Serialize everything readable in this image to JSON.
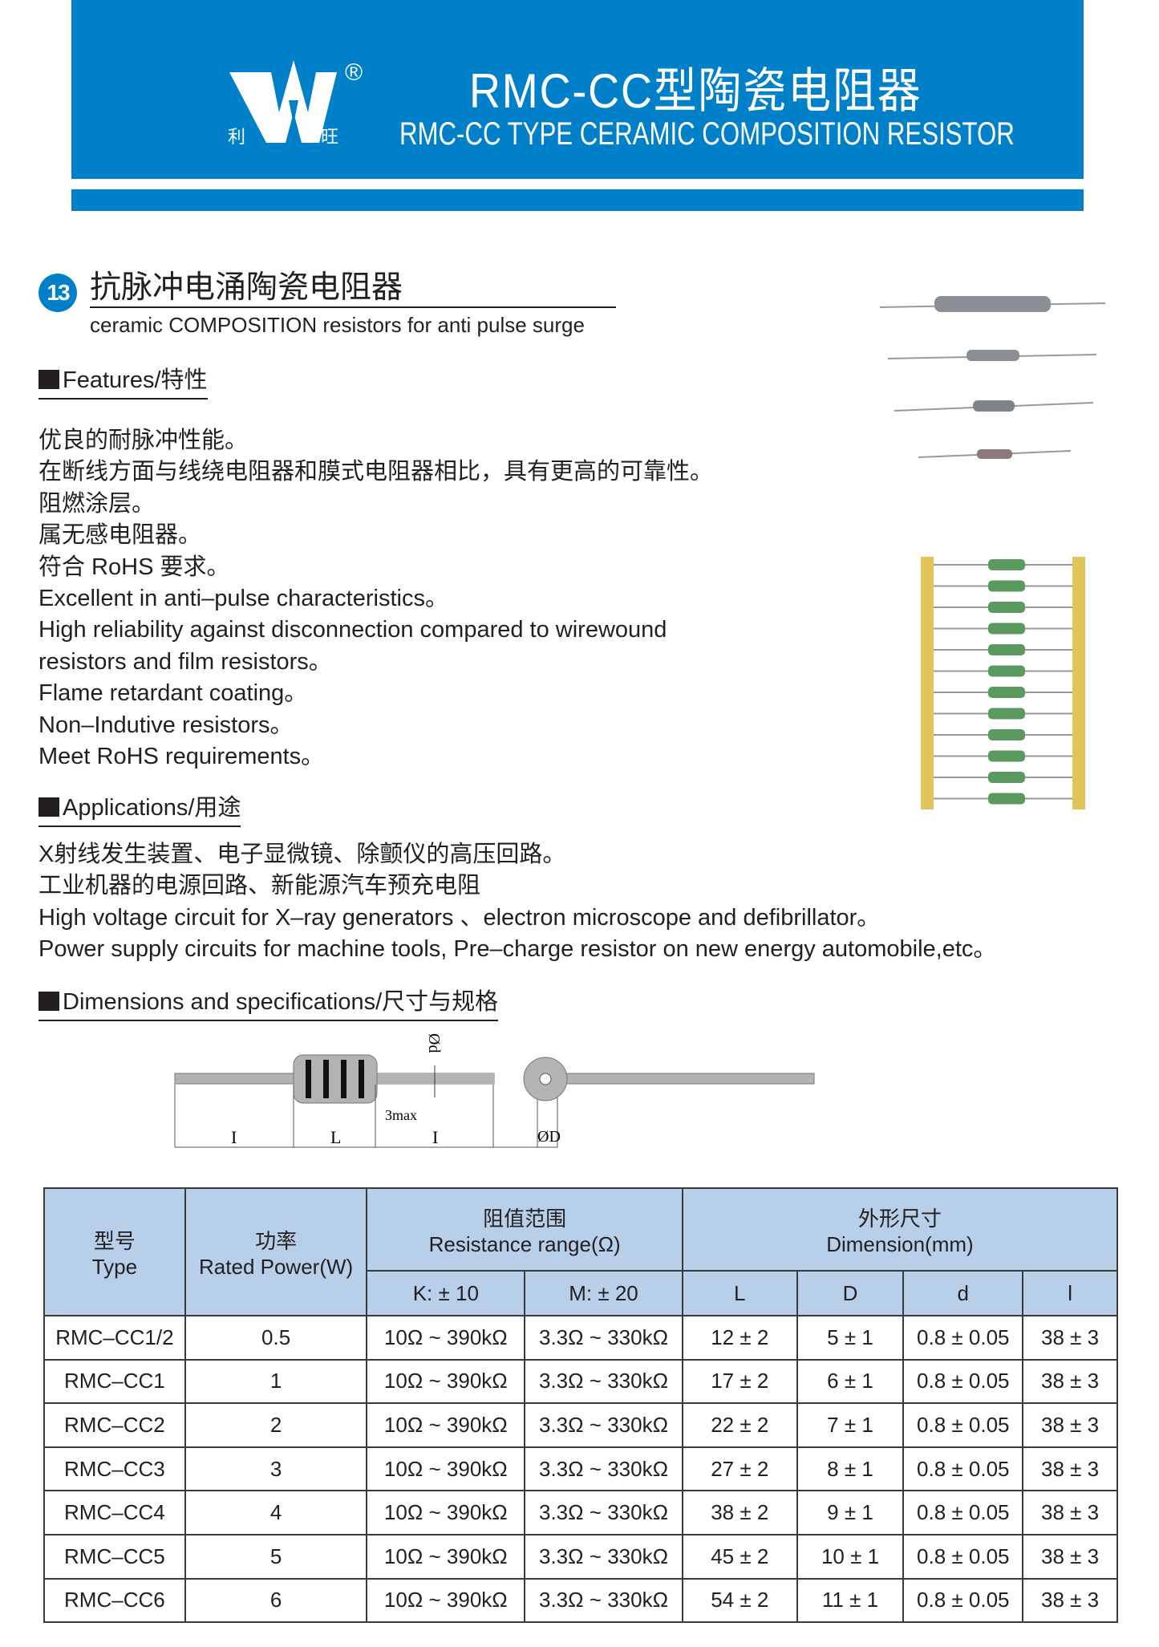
{
  "header": {
    "logo_left_char": "利",
    "logo_right_char": "旺",
    "registered": "®",
    "title_cn": "RMC-CC型陶瓷电阻器",
    "title_en": "RMC-CC TYPE CERAMIC COMPOSITION RESISTOR",
    "color": "#0080c8"
  },
  "section": {
    "number": "13",
    "title_cn": "抗脉冲电涌陶瓷电阻器",
    "title_en": "ceramic COMPOSITION resistors for anti pulse surge"
  },
  "features": {
    "heading": "Features/特性",
    "lines": [
      "优良的耐脉冲性能。",
      "在断线方面与线绕电阻器和膜式电阻器相比，具有更高的可靠性。",
      "阻燃涂层。",
      "属无感电阻器。",
      "符合 RoHS 要求。",
      "Excellent in anti–pulse characteristics。",
      "High reliability against disconnection compared to wirewound",
      "resistors and film resistors。",
      "Flame retardant coating。",
      "Non–Indutive resistors。",
      "Meet RoHS requirements。"
    ]
  },
  "applications": {
    "heading": "Applications/用途",
    "lines": [
      "X射线发生装置、电子显微镜、除颤仪的高压回路。",
      "工业机器的电源回路、新能源汽车预充电阻",
      "High voltage circuit for X–ray generators 、electron microscope and defibrillator。",
      "Power supply circuits for machine tools, Pre–charge resistor on new energy automobile,etc。"
    ]
  },
  "dimensions": {
    "heading": "Dimensions and specifications/尺寸与规格",
    "diagram": {
      "l": "I",
      "L": "L",
      "max": "3max",
      "d": "Ød",
      "D": "ØD"
    }
  },
  "table": {
    "type_cn": "型号",
    "type_en": "Type",
    "power_cn": "功率",
    "power_en": "Rated Power(W)",
    "res_cn": "阻值范围",
    "res_en": "Resistance range(Ω)",
    "dim_cn": "外形尺寸",
    "dim_en": "Dimension(mm)",
    "sub": [
      "K: ± 10",
      "M: ± 20",
      "L",
      "D",
      "d",
      "l"
    ],
    "rows": [
      [
        "RMC–CC1/2",
        "0.5",
        "10Ω ~ 390kΩ",
        "3.3Ω ~ 330kΩ",
        "12 ± 2",
        "5 ± 1",
        "0.8 ± 0.05",
        "38 ± 3"
      ],
      [
        "RMC–CC1",
        "1",
        "10Ω ~ 390kΩ",
        "3.3Ω ~ 330kΩ",
        "17 ± 2",
        "6 ± 1",
        "0.8 ± 0.05",
        "38 ± 3"
      ],
      [
        "RMC–CC2",
        "2",
        "10Ω ~ 390kΩ",
        "3.3Ω ~ 330kΩ",
        "22 ± 2",
        "7 ± 1",
        "0.8 ± 0.05",
        "38 ± 3"
      ],
      [
        "RMC–CC3",
        "3",
        "10Ω ~ 390kΩ",
        "3.3Ω ~ 330kΩ",
        "27 ± 2",
        "8 ± 1",
        "0.8 ± 0.05",
        "38 ± 3"
      ],
      [
        "RMC–CC4",
        "4",
        "10Ω ~ 390kΩ",
        "3.3Ω ~ 330kΩ",
        "38 ± 2",
        "9 ± 1",
        "0.8 ± 0.05",
        "38 ± 3"
      ],
      [
        "RMC–CC5",
        "5",
        "10Ω ~ 390kΩ",
        "3.3Ω ~ 330kΩ",
        "45 ± 2",
        "10 ± 1",
        "0.8 ± 0.05",
        "38 ± 3"
      ],
      [
        "RMC–CC6",
        "6",
        "10Ω ~ 390kΩ",
        "3.3Ω ~ 330kΩ",
        "54 ± 2",
        "11 ± 1",
        "0.8 ± 0.05",
        "38 ± 3"
      ]
    ]
  }
}
